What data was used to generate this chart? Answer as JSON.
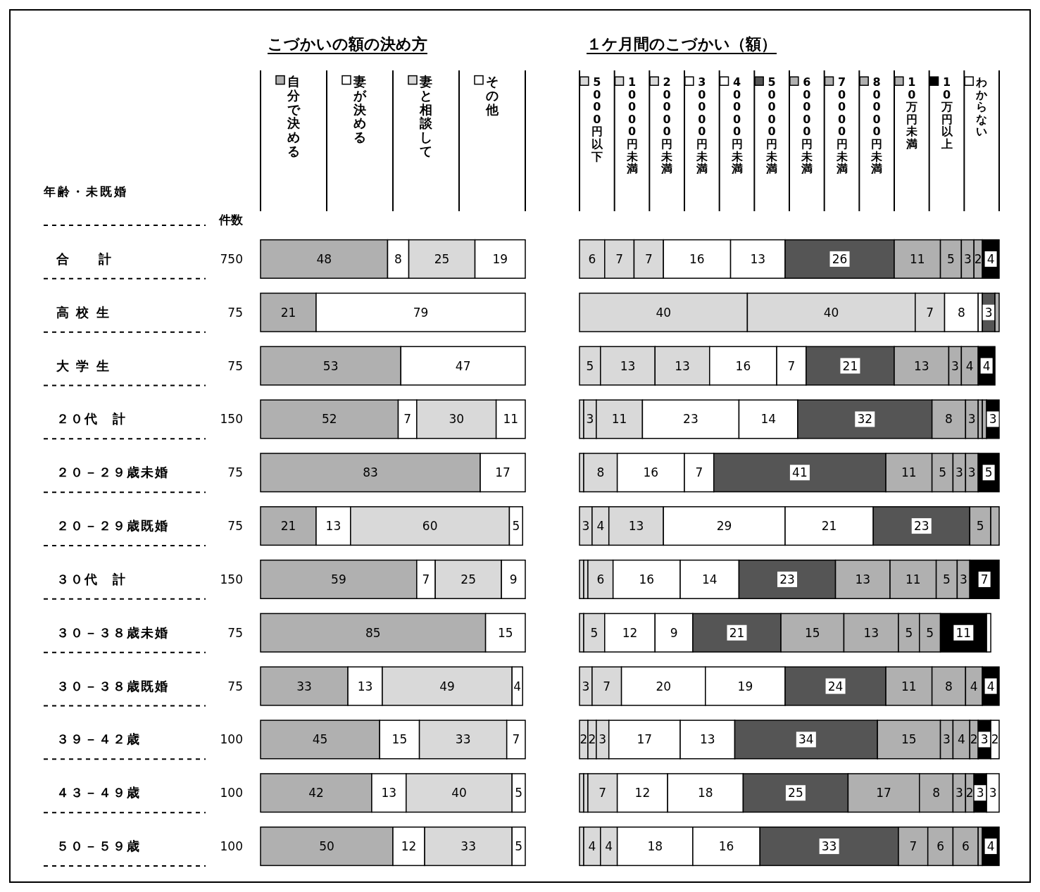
{
  "chart_data": [
    {
      "type": "bar",
      "title": "こづかいの額の決め方",
      "legend": "top",
      "ylabel": "年齢・未既婚",
      "orientation": "horizontal",
      "stacked": true,
      "xlim": [
        0,
        100
      ],
      "tick_labels": "y",
      "categories": [
        "合　　計",
        "高 校 生",
        "大 学 生",
        "２０代　計",
        "２０－２９歳未婚",
        "２０－２９歳既婚",
        "３０代　計",
        "３０－３８歳未婚",
        "３０－３８歳既婚",
        "３９－４２歳",
        "４３－４９歳",
        "５０－５９歳"
      ],
      "annotations": [
        "件数",
        "750",
        "75",
        "75",
        "150",
        "75",
        "75",
        "150",
        "75",
        "75",
        "100",
        "100",
        "100"
      ],
      "series": [
        {
          "name": "自分で決める",
          "color": "#b0b0b0",
          "values": [
            48,
            21,
            53,
            52,
            83,
            21,
            59,
            85,
            33,
            45,
            42,
            50
          ],
          "value_labels": [
            "48",
            "21",
            "53",
            "52",
            "83",
            "21",
            "59",
            "85",
            "33",
            "45",
            "42",
            "50"
          ]
        },
        {
          "name": "妻が決める",
          "color": "#ffffff",
          "values": [
            8,
            0,
            0,
            7,
            0,
            13,
            7,
            0,
            13,
            15,
            13,
            12
          ],
          "value_labels": [
            "8",
            null,
            null,
            "7",
            null,
            "13",
            "7",
            null,
            "13",
            "15",
            "13",
            "12"
          ]
        },
        {
          "name": "妻と相談して",
          "color": "#d9d9d9",
          "values": [
            25,
            0,
            0,
            30,
            0,
            60,
            25,
            0,
            49,
            33,
            40,
            33
          ],
          "value_labels": [
            "25",
            null,
            null,
            "30",
            null,
            "60",
            "25",
            null,
            "49",
            "33",
            "40",
            "33"
          ]
        },
        {
          "name": "その他",
          "color": "#ffffff",
          "values": [
            19,
            79,
            47,
            11,
            17,
            5,
            9,
            15,
            4,
            7,
            5,
            5
          ],
          "value_labels": [
            "19",
            "79",
            "47",
            "11",
            "17",
            "5",
            "9",
            "15",
            "4",
            "7",
            "5",
            "5"
          ]
        }
      ]
    },
    {
      "type": "bar",
      "title": "１ケ月間のこづかい（額）",
      "legend": "top",
      "orientation": "horizontal",
      "stacked": true,
      "xlim": [
        0,
        100
      ],
      "tick_labels": false,
      "categories": [
        null,
        null,
        null,
        null,
        null,
        null,
        null,
        null,
        null,
        null,
        null,
        null
      ],
      "series": [
        {
          "name": "5000円以下",
          "color": "#d9d9d9",
          "values": [
            6,
            40,
            5,
            1,
            0,
            3,
            1,
            1,
            3,
            2,
            1,
            1
          ],
          "value_labels": [
            "6",
            "40",
            "5",
            null,
            null,
            "3",
            null,
            null,
            "3",
            "2",
            null,
            null
          ]
        },
        {
          "name": "10000円未満",
          "color": "#d9d9d9",
          "values": [
            7,
            40,
            13,
            3,
            1,
            4,
            1,
            5,
            0,
            2,
            1,
            4
          ],
          "value_labels": [
            "7",
            "40",
            "13",
            "3",
            null,
            "4",
            null,
            "5",
            null,
            "2",
            null,
            "4"
          ]
        },
        {
          "name": "20000円未満",
          "color": "#d9d9d9",
          "values": [
            7,
            7,
            13,
            11,
            8,
            13,
            6,
            0,
            7,
            3,
            7,
            4
          ],
          "value_labels": [
            "7",
            "7",
            "13",
            "11",
            "8",
            "13",
            "6",
            null,
            "7",
            "3",
            "7",
            "4"
          ]
        },
        {
          "name": "30000円未満",
          "color": "#ffffff",
          "values": [
            16,
            8,
            16,
            23,
            16,
            29,
            16,
            12,
            20,
            17,
            12,
            18
          ],
          "value_labels": [
            "16",
            "8",
            "16",
            "23",
            "16",
            "29",
            "16",
            "12",
            "20",
            "17",
            "12",
            "18"
          ]
        },
        {
          "name": "40000円未満",
          "color": "#ffffff",
          "values": [
            13,
            1,
            7,
            14,
            7,
            21,
            14,
            9,
            19,
            13,
            18,
            16
          ],
          "value_labels": [
            "13",
            null,
            "7",
            "14",
            "7",
            "21",
            "14",
            "9",
            "19",
            "13",
            "18",
            "16"
          ]
        },
        {
          "name": "50000円未満",
          "color": "#555555",
          "values": [
            26,
            3,
            21,
            32,
            41,
            23,
            23,
            21,
            24,
            34,
            25,
            33
          ],
          "value_labels": [
            "26",
            "3",
            "21",
            "32",
            "41",
            "23",
            "23",
            "21",
            "24",
            "34",
            "25",
            "33"
          ]
        },
        {
          "name": "60000円未満",
          "color": "#b0b0b0",
          "values": [
            11,
            1,
            13,
            8,
            11,
            5,
            13,
            15,
            11,
            15,
            17,
            7
          ],
          "value_labels": [
            "11",
            null,
            "13",
            "8",
            "11",
            "5",
            "13",
            "15",
            "11",
            "15",
            "17",
            "7"
          ]
        },
        {
          "name": "70000円未満",
          "color": "#b0b0b0",
          "values": [
            5,
            0,
            3,
            3,
            5,
            2,
            11,
            13,
            8,
            3,
            8,
            6
          ],
          "value_labels": [
            "5",
            null,
            "3",
            "3",
            "5",
            null,
            "11",
            "13",
            "8",
            "3",
            "8",
            "6"
          ]
        },
        {
          "name": "80000円未満",
          "color": "#b0b0b0",
          "values": [
            3,
            0,
            4,
            1,
            3,
            0,
            5,
            5,
            4,
            4,
            3,
            6
          ],
          "value_labels": [
            "3",
            null,
            "4",
            null,
            "3",
            null,
            "5",
            "5",
            "4",
            "4",
            "3",
            "6"
          ]
        },
        {
          "name": "10万円未満",
          "color": "#b0b0b0",
          "values": [
            2,
            0,
            0,
            1,
            3,
            0,
            3,
            5,
            0,
            2,
            2,
            1
          ],
          "value_labels": [
            "2",
            null,
            null,
            null,
            "3",
            null,
            "3",
            "5",
            null,
            "2",
            "2",
            null
          ]
        },
        {
          "name": "10万円以上",
          "color": "#000000",
          "values": [
            4,
            0,
            4,
            3,
            5,
            0,
            7,
            11,
            4,
            3,
            3,
            4
          ],
          "value_labels": [
            "4",
            null,
            "4",
            "3",
            "5",
            null,
            "7",
            "11",
            "4",
            "3",
            "3",
            "4"
          ]
        },
        {
          "name": "わからない",
          "color": "#ffffff",
          "values": [
            0,
            0,
            0,
            0,
            0,
            0,
            0,
            1,
            0,
            2,
            3,
            0
          ],
          "value_labels": [
            null,
            null,
            null,
            null,
            null,
            null,
            null,
            null,
            null,
            "2",
            "3",
            null
          ]
        }
      ]
    }
  ]
}
